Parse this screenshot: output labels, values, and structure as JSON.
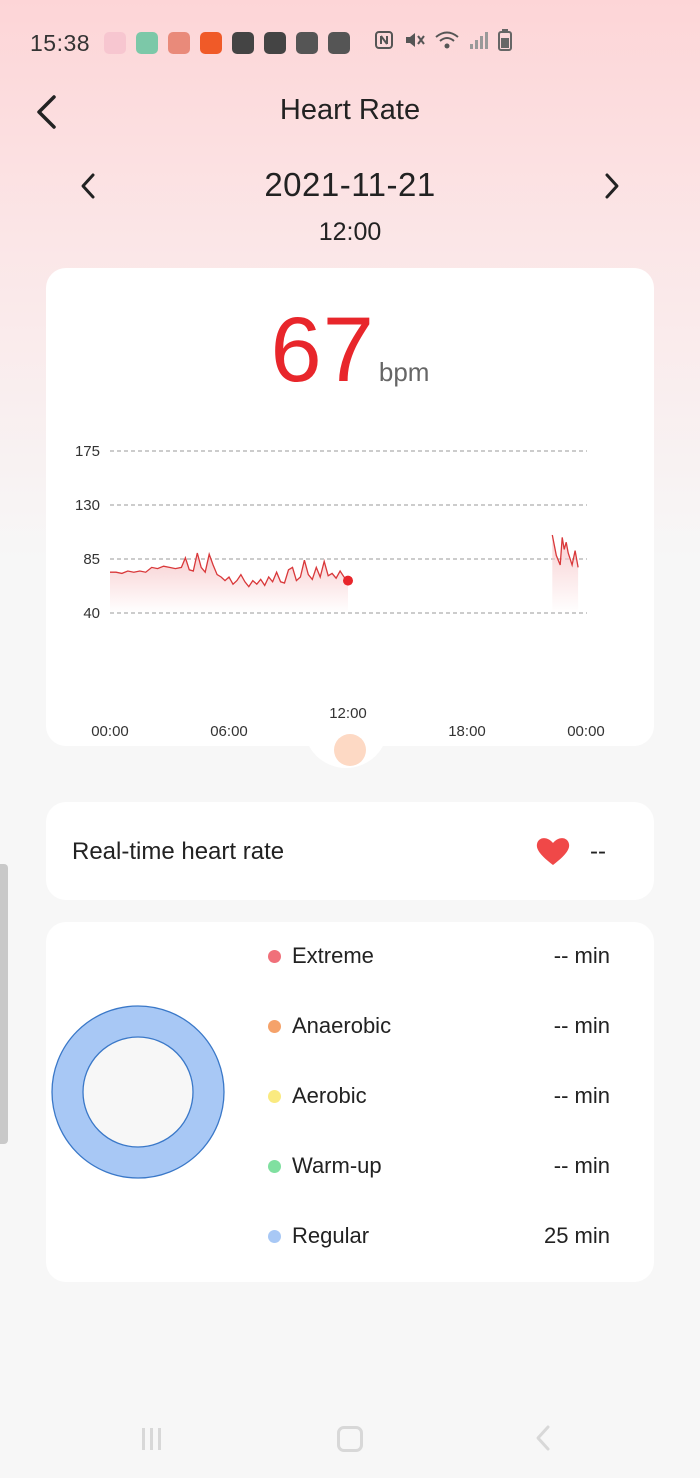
{
  "status_bar": {
    "time": "15:38",
    "app_icons": [
      {
        "name": "photos-app-icon",
        "color": "#f7c6d0"
      },
      {
        "name": "health-app-icon",
        "color": "#7cc8a8"
      },
      {
        "name": "heart-app-icon",
        "color": "#e98a7a"
      },
      {
        "name": "flash-app-icon",
        "color": "#f05a28"
      },
      {
        "name": "gallery-app-icon",
        "color": "#444444"
      },
      {
        "name": "q-app-icon",
        "color": "#444444"
      },
      {
        "name": "key-app-icon",
        "color": "#555555"
      },
      {
        "name": "close-box-icon",
        "color": "#555555"
      }
    ],
    "system_icons": [
      "nfc-icon",
      "mute-icon",
      "wifi-icon",
      "signal-icon",
      "battery-icon"
    ]
  },
  "header": {
    "title": "Heart Rate",
    "back_icon": "chevron-left-icon"
  },
  "date_nav": {
    "date": "2021-11-21",
    "time": "12:00",
    "prev_icon": "chevron-left-icon",
    "next_icon": "chevron-right-icon"
  },
  "current": {
    "value": "67",
    "unit": "bpm"
  },
  "chart_data": {
    "type": "line",
    "y_ticks": [
      "175",
      "130",
      "85",
      "40"
    ],
    "ylim": [
      40,
      175
    ],
    "x_ticks": [
      "00:00",
      "06:00",
      "12:00",
      "18:00",
      "00:00"
    ],
    "x_unit": "hours",
    "xlim": [
      0,
      24
    ],
    "grid": true,
    "line_color": "#d9383a",
    "fill_color": "#f7c9cb",
    "selected": {
      "x": 12,
      "y": 67
    },
    "series": [
      {
        "segments": [
          [
            [
              0.0,
              74
            ],
            [
              0.3,
              74
            ],
            [
              0.6,
              73
            ],
            [
              0.9,
              75
            ],
            [
              1.2,
              74
            ],
            [
              1.5,
              75
            ],
            [
              1.8,
              74
            ],
            [
              2.1,
              78
            ],
            [
              2.4,
              77
            ],
            [
              2.7,
              79
            ],
            [
              3.0,
              78
            ],
            [
              3.3,
              77
            ],
            [
              3.6,
              78
            ],
            [
              3.8,
              86
            ],
            [
              4.0,
              76
            ],
            [
              4.2,
              75
            ],
            [
              4.4,
              90
            ],
            [
              4.6,
              78
            ],
            [
              4.8,
              74
            ],
            [
              5.0,
              89
            ],
            [
              5.2,
              80
            ],
            [
              5.4,
              72
            ],
            [
              5.6,
              70
            ],
            [
              5.8,
              67
            ],
            [
              6.0,
              70
            ],
            [
              6.2,
              64
            ],
            [
              6.4,
              67
            ],
            [
              6.6,
              72
            ],
            [
              6.8,
              66
            ],
            [
              7.0,
              62
            ],
            [
              7.2,
              67
            ],
            [
              7.4,
              64
            ],
            [
              7.6,
              68
            ],
            [
              7.8,
              63
            ],
            [
              8.0,
              70
            ],
            [
              8.2,
              66
            ],
            [
              8.4,
              74
            ],
            [
              8.6,
              66
            ],
            [
              8.8,
              65
            ],
            [
              9.0,
              76
            ],
            [
              9.2,
              78
            ],
            [
              9.4,
              67
            ],
            [
              9.6,
              70
            ],
            [
              9.8,
              84
            ],
            [
              10.0,
              72
            ],
            [
              10.2,
              68
            ],
            [
              10.4,
              78
            ],
            [
              10.6,
              70
            ],
            [
              10.8,
              83
            ],
            [
              11.0,
              71
            ],
            [
              11.2,
              73
            ],
            [
              11.4,
              69
            ],
            [
              11.6,
              75
            ],
            [
              11.8,
              70
            ],
            [
              12.0,
              67
            ]
          ],
          [
            [
              22.3,
              105
            ],
            [
              22.5,
              88
            ],
            [
              22.7,
              80
            ],
            [
              22.8,
              103
            ],
            [
              22.9,
              93
            ],
            [
              23.0,
              99
            ],
            [
              23.1,
              90
            ],
            [
              23.3,
              80
            ],
            [
              23.45,
              92
            ],
            [
              23.6,
              78
            ]
          ]
        ]
      }
    ]
  },
  "realtime": {
    "label": "Real-time heart rate",
    "value": "--",
    "icon": "heart-icon",
    "icon_color": "#f04848"
  },
  "zones": {
    "items": [
      {
        "name": "Extreme",
        "value": "-- min",
        "color": "#f0707a",
        "minutes": 0
      },
      {
        "name": "Anaerobic",
        "value": "-- min",
        "color": "#f5a26a",
        "minutes": 0
      },
      {
        "name": "Aerobic",
        "value": "-- min",
        "color": "#faea80",
        "minutes": 0
      },
      {
        "name": "Warm-up",
        "value": "-- min",
        "color": "#80e0a0",
        "minutes": 0
      },
      {
        "name": "Regular",
        "value": "25 min",
        "color": "#a8c8f5",
        "minutes": 25
      }
    ],
    "donut_stroke": "#3a78c8"
  },
  "nav": {
    "recent_icon": "recent-apps-icon",
    "home_icon": "home-icon",
    "back_icon": "back-arrow-icon"
  }
}
